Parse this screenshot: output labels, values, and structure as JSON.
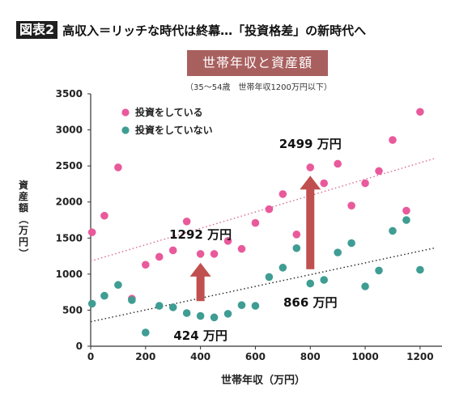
{
  "header": {
    "figure_label": "図表2",
    "title": "高収入＝リッチな時代は終幕…「投資格差」の新時代へ"
  },
  "chart_data": {
    "type": "scatter",
    "title": "世帯年収と資産額",
    "subtitle": "（35～54歳　世帯年収1200万円以下）",
    "xlabel": "世帯年収（万円）",
    "ylabel": "資産額（万円）",
    "xlim": [
      0,
      1280
    ],
    "ylim": [
      0,
      3500
    ],
    "xticks": [
      0,
      200,
      400,
      600,
      800,
      1000,
      1200
    ],
    "yticks": [
      0,
      500,
      1000,
      1500,
      2000,
      2500,
      3000,
      3500
    ],
    "grid": false,
    "legend_position": "top-left",
    "series": [
      {
        "name": "投資をしている",
        "color": "#e85a9b",
        "points": [
          [
            5,
            1580
          ],
          [
            50,
            1810
          ],
          [
            100,
            2480
          ],
          [
            150,
            660
          ],
          [
            200,
            1130
          ],
          [
            250,
            1240
          ],
          [
            300,
            1330
          ],
          [
            350,
            1730
          ],
          [
            400,
            1280
          ],
          [
            450,
            1280
          ],
          [
            500,
            1460
          ],
          [
            550,
            1350
          ],
          [
            600,
            1710
          ],
          [
            650,
            1900
          ],
          [
            700,
            2110
          ],
          [
            750,
            1550
          ],
          [
            800,
            2480
          ],
          [
            850,
            2260
          ],
          [
            900,
            2530
          ],
          [
            950,
            1950
          ],
          [
            1000,
            2260
          ],
          [
            1050,
            2430
          ],
          [
            1100,
            2860
          ],
          [
            1150,
            1880
          ],
          [
            1200,
            3250
          ]
        ],
        "trend": [
          [
            0,
            1180
          ],
          [
            1250,
            2600
          ]
        ],
        "trend_style": "dotted"
      },
      {
        "name": "投資をしていない",
        "color": "#3f9d93",
        "points": [
          [
            5,
            590
          ],
          [
            50,
            700
          ],
          [
            100,
            850
          ],
          [
            150,
            640
          ],
          [
            200,
            190
          ],
          [
            250,
            560
          ],
          [
            300,
            540
          ],
          [
            350,
            460
          ],
          [
            400,
            420
          ],
          [
            450,
            400
          ],
          [
            500,
            450
          ],
          [
            550,
            570
          ],
          [
            600,
            560
          ],
          [
            650,
            960
          ],
          [
            700,
            1090
          ],
          [
            750,
            1360
          ],
          [
            800,
            870
          ],
          [
            850,
            920
          ],
          [
            900,
            1300
          ],
          [
            950,
            1430
          ],
          [
            1000,
            830
          ],
          [
            1050,
            1050
          ],
          [
            1100,
            1600
          ],
          [
            1150,
            1750
          ],
          [
            1200,
            1060
          ]
        ],
        "trend": [
          [
            0,
            340
          ],
          [
            1250,
            1360
          ]
        ],
        "trend_style": "dotted"
      }
    ],
    "annotations": [
      {
        "text": "1292 万円",
        "x": 400,
        "y": 1292
      },
      {
        "text": "424 万円",
        "x": 400,
        "y": 424
      },
      {
        "text": "2499 万円",
        "x": 800,
        "y": 2499
      },
      {
        "text": "866 万円",
        "x": 800,
        "y": 866
      }
    ],
    "arrows": [
      {
        "x": 400,
        "from": 424,
        "to": 1292,
        "color": "#c0504f"
      },
      {
        "x": 800,
        "from": 866,
        "to": 2499,
        "color": "#c0504f"
      }
    ]
  }
}
